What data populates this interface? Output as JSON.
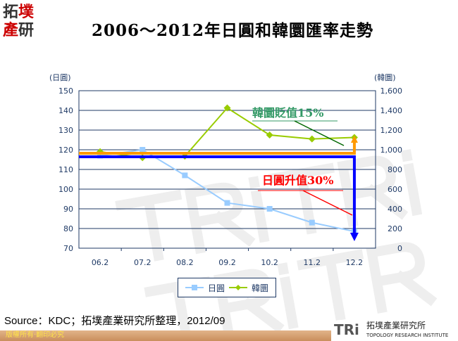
{
  "logo": {
    "text": "拓墣產研"
  },
  "title": "2006～2012年日圓和韓圜匯率走勢",
  "chart_data": {
    "type": "line",
    "title": "2006～2012年日圓和韓圜匯率走勢",
    "categories": [
      "06.2",
      "07.2",
      "08.2",
      "09.2",
      "10.2",
      "11.2",
      "12.2"
    ],
    "left_axis": {
      "label": "(日圓)",
      "ylim": [
        70,
        150
      ],
      "ticks": [
        "70",
        "80",
        "90",
        "100",
        "110",
        "120",
        "130",
        "140",
        "150"
      ]
    },
    "right_axis": {
      "label": "(韓圜)",
      "ylim": [
        0,
        1600
      ],
      "ticks": [
        "0",
        "200",
        "400",
        "600",
        "800",
        "1,000",
        "1,200",
        "1,400",
        "1,600"
      ]
    },
    "grid": true,
    "legend": "bottom",
    "series": [
      {
        "name": "日圓",
        "axis": "left",
        "color": "#99ccff",
        "values": [
          117,
          120,
          107,
          93,
          90,
          83,
          78.5
        ]
      },
      {
        "name": "韓圜",
        "axis": "right",
        "color": "#99cc00",
        "values": [
          980,
          920,
          935,
          1425,
          1150,
          1110,
          1125
        ]
      }
    ],
    "annotations": [
      {
        "text": "韓圜貶值15%",
        "color": "#339966"
      },
      {
        "text": "日圓升值30%",
        "color": "#ff0000"
      }
    ]
  },
  "source": "Source：KDC；拓墣產業研究所整理，2012/09",
  "copyright": "版權所有‧翻印必究",
  "brand": {
    "name": "拓墣產業研究所",
    "sub": "TOPOLOGY RESEARCH INSTITUTE",
    "mark": "TRi"
  }
}
